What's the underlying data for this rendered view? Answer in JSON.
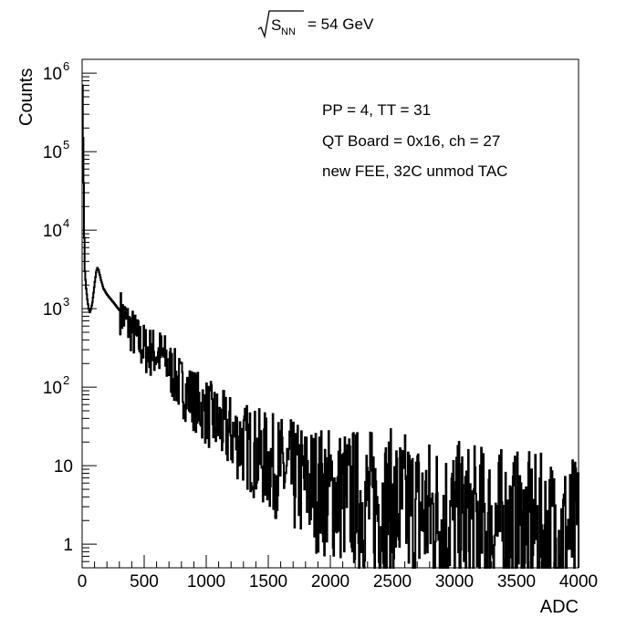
{
  "chart_data": {
    "type": "line",
    "title_root": "S",
    "title_sub": "NN",
    "title_rest": "= 54 GeV",
    "xlabel": "ADC",
    "ylabel": "Counts",
    "log_y": true,
    "xlim": [
      0,
      4000
    ],
    "ylim": [
      0.5,
      1500000
    ],
    "grid": false,
    "x_ticks": [
      0,
      500,
      1000,
      1500,
      2000,
      2500,
      3000,
      3500,
      4000
    ],
    "x_tick_labels": [
      "0",
      "500",
      "1000",
      "1500",
      "2000",
      "2500",
      "3000",
      "3500",
      "4000"
    ],
    "y_ticks": [
      1,
      10,
      100,
      1000,
      10000,
      100000,
      1000000
    ],
    "y_tick_labels": [
      {
        "base": "1",
        "exp": ""
      },
      {
        "base": "10",
        "exp": ""
      },
      {
        "base": "10",
        "exp": "2"
      },
      {
        "base": "10",
        "exp": "3"
      },
      {
        "base": "10",
        "exp": "4"
      },
      {
        "base": "10",
        "exp": "5"
      },
      {
        "base": "10",
        "exp": "6"
      }
    ],
    "annotations": [
      "PP = 4, TT = 31",
      "QT Board = 0x16, ch = 27",
      "new FEE, 32C unmod TAC"
    ],
    "series": [
      {
        "x": [
          0,
          5,
          10,
          15,
          20,
          30,
          40,
          50,
          60,
          70,
          80,
          90,
          100,
          110,
          120,
          130,
          140,
          150,
          170,
          200,
          250,
          300,
          350,
          400,
          450,
          500,
          550,
          600,
          650,
          700,
          750,
          800,
          900,
          1000,
          1100,
          1200,
          1300,
          1400,
          1500,
          1600,
          1700,
          1800,
          1900,
          2000,
          2200,
          2400,
          2600,
          2800,
          3000,
          3200,
          3400,
          3600,
          3800,
          4000
        ],
        "y": [
          700000,
          150000,
          40000,
          8000,
          3000,
          1800,
          1300,
          1000,
          900,
          1000,
          1200,
          1600,
          2200,
          2900,
          3300,
          3100,
          2700,
          2300,
          1800,
          1500,
          1200,
          950,
          700,
          520,
          380,
          310,
          280,
          270,
          250,
          180,
          130,
          100,
          70,
          48,
          33,
          25,
          19,
          14,
          11,
          9,
          7,
          6,
          5,
          4.5,
          3.8,
          3.2,
          2.8,
          2.4,
          2.1,
          1.9,
          1.7,
          1.5,
          1.4,
          1.3
        ]
      }
    ]
  }
}
